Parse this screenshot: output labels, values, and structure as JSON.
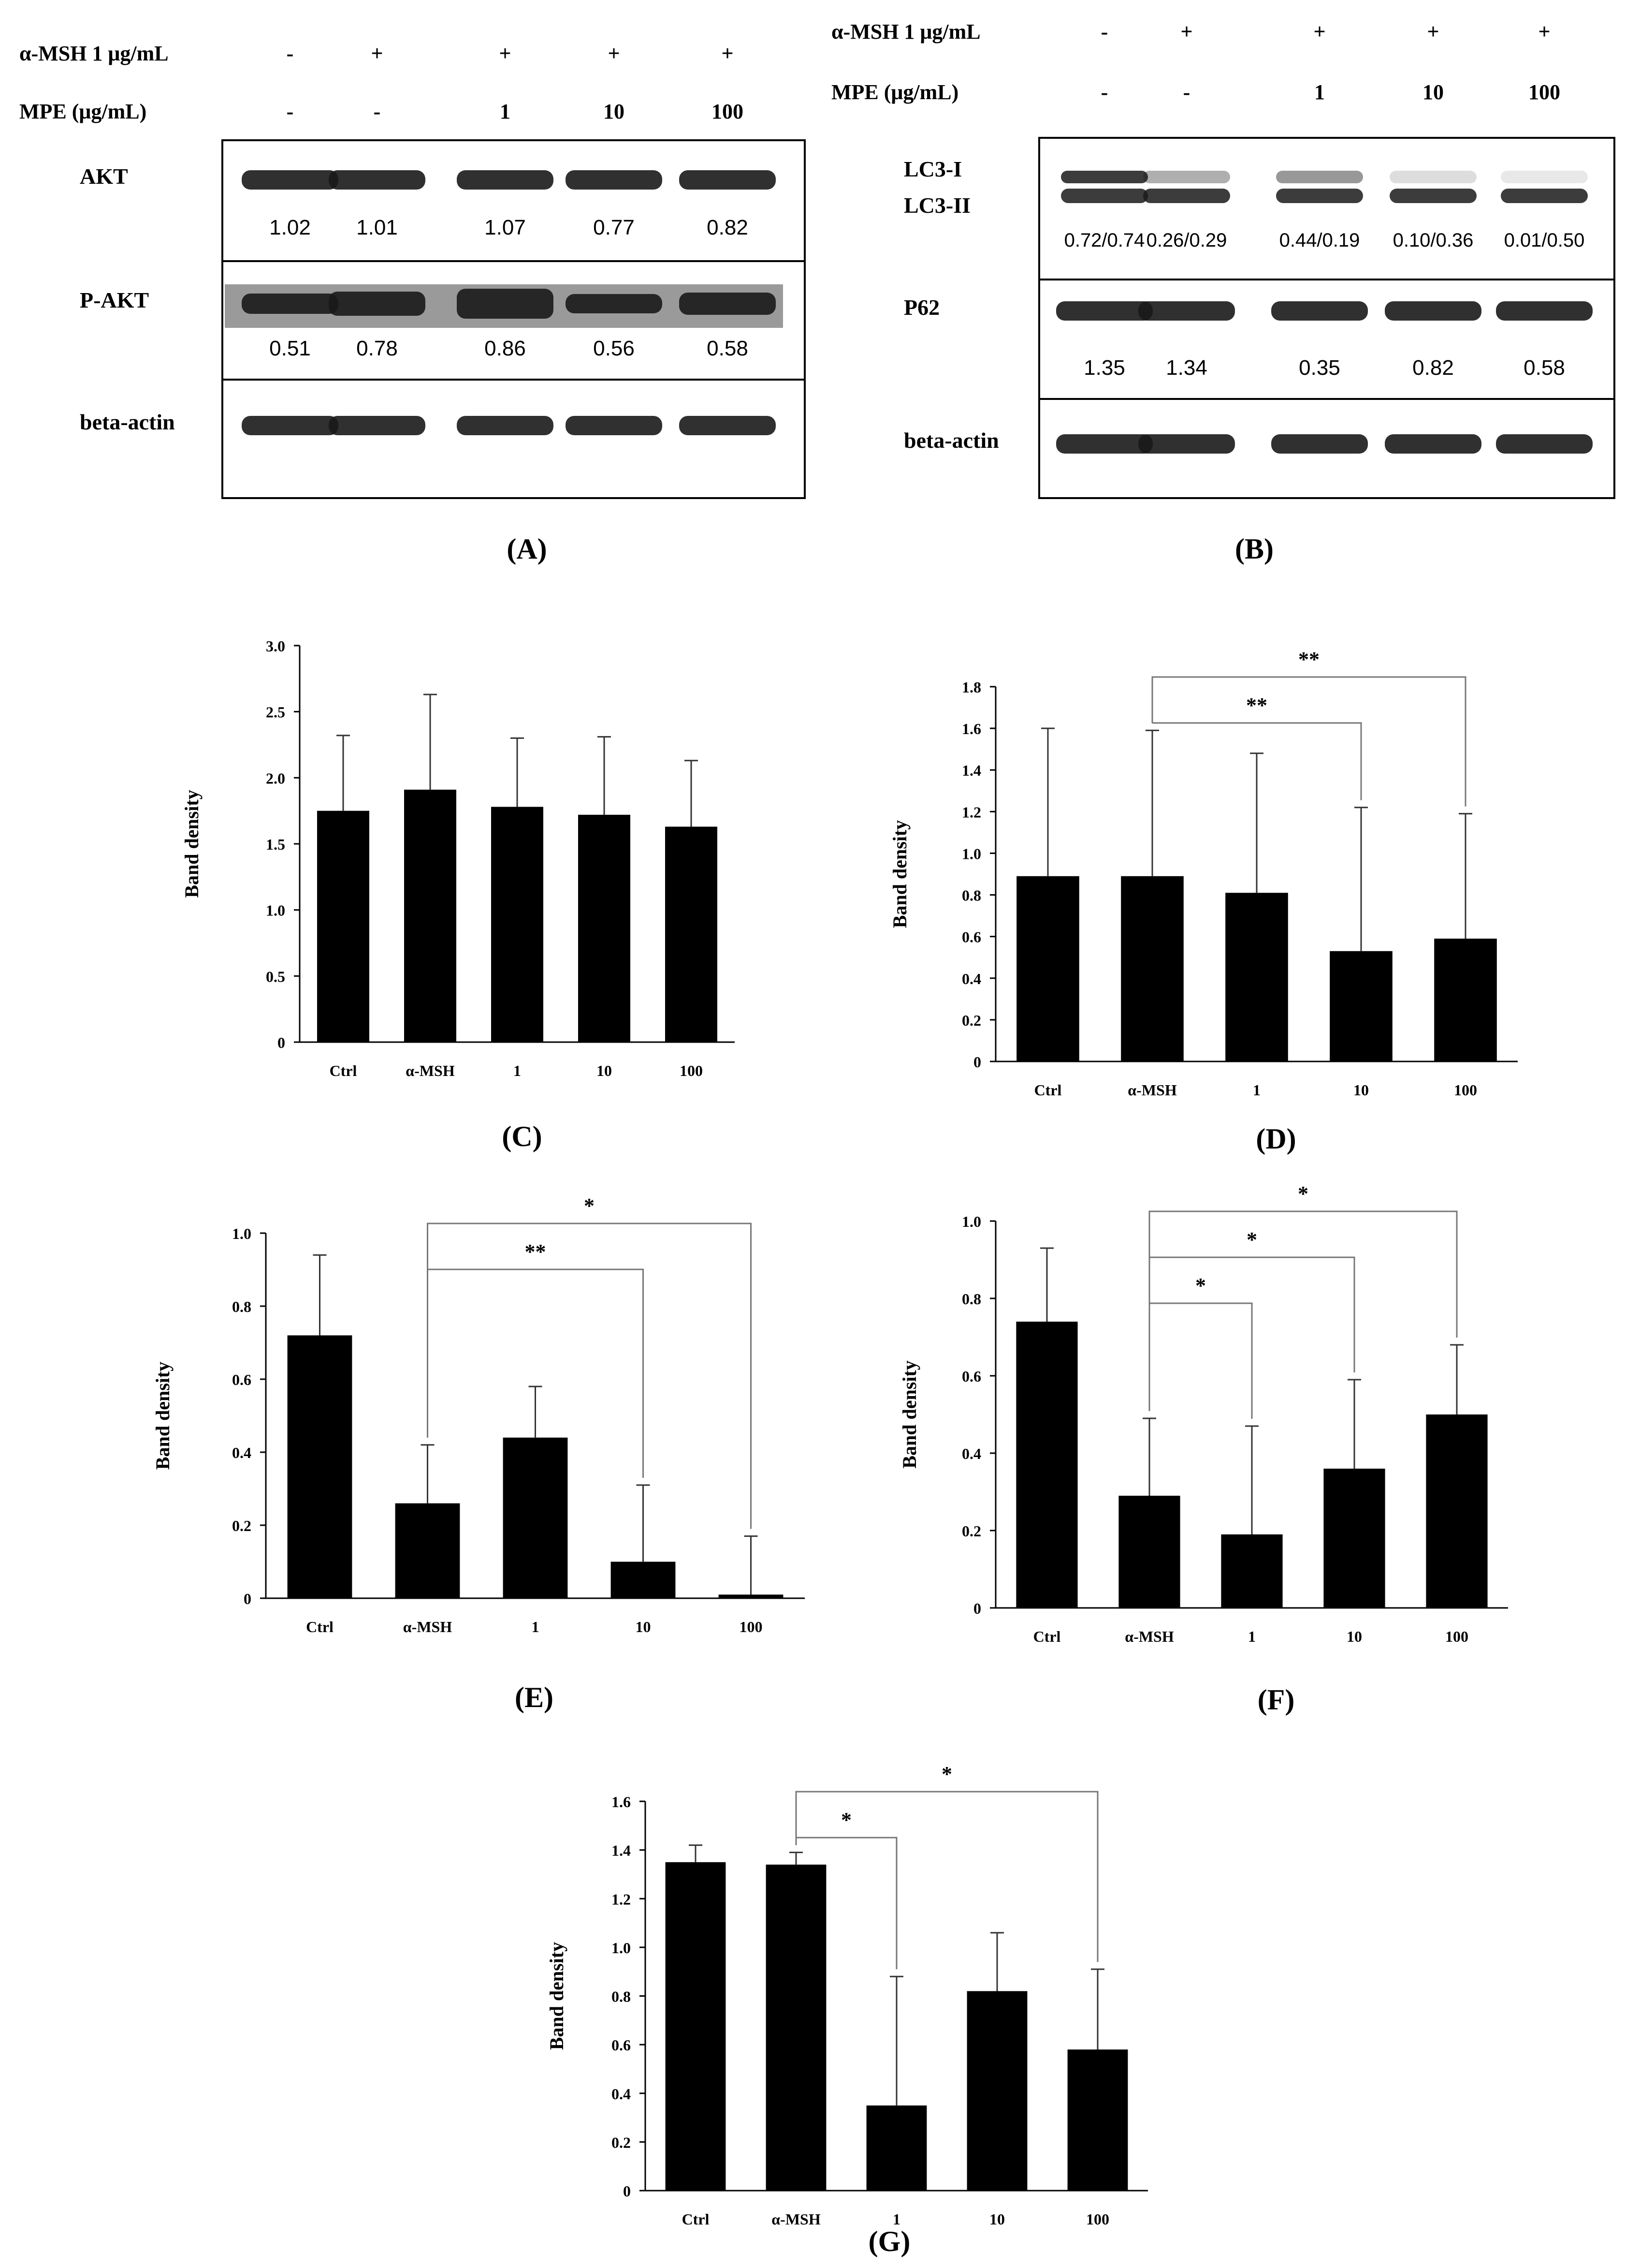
{
  "blot_a": {
    "treatment_rows": [
      {
        "label": "α-MSH 1 μg/mL",
        "values": [
          "-",
          "+",
          "+",
          "+",
          "+"
        ]
      },
      {
        "label": "MPE (μg/mL)",
        "values": [
          "-",
          "-",
          "1",
          "10",
          "100"
        ]
      }
    ],
    "bands": [
      {
        "label": "AKT",
        "values": [
          "1.02",
          "1.01",
          "1.07",
          "0.77",
          "0.82"
        ]
      },
      {
        "label": "P-AKT",
        "values": [
          "0.51",
          "0.78",
          "0.86",
          "0.56",
          "0.58"
        ]
      },
      {
        "label": "beta-actin",
        "values": []
      }
    ],
    "panel_label": "(A)"
  },
  "blot_b": {
    "treatment_rows": [
      {
        "label": "α-MSH 1 μg/mL",
        "values": [
          "-",
          "+",
          "+",
          "+",
          "+"
        ]
      },
      {
        "label": "MPE (μg/mL)",
        "values": [
          "-",
          "-",
          "1",
          "10",
          "100"
        ]
      }
    ],
    "bands": [
      {
        "label": "LC3-I",
        "label2": "LC3-II",
        "values": [
          "0.72/0.74",
          "0.26/0.29",
          "0.44/0.19",
          "0.10/0.36",
          "0.01/0.50"
        ]
      },
      {
        "label": "P62",
        "values": [
          "1.35",
          "1.34",
          "0.35",
          "0.82",
          "0.58"
        ]
      },
      {
        "label": "beta-actin",
        "values": []
      }
    ],
    "panel_label": "(B)"
  },
  "chart_data": [
    {
      "panel": "(C)",
      "type": "bar",
      "categories": [
        "Ctrl",
        "α-MSH",
        "1",
        "10",
        "100"
      ],
      "values": [
        1.75,
        1.91,
        1.78,
        1.72,
        1.63
      ],
      "errors": [
        0.57,
        0.72,
        0.52,
        0.59,
        0.5
      ],
      "ylabel": "Band density",
      "ylim": [
        0,
        3
      ],
      "yticks": [
        "0",
        "0.5",
        "1.0",
        "1.5",
        "2.0",
        "2.5",
        "3.0"
      ],
      "significance": []
    },
    {
      "panel": "(D)",
      "type": "bar",
      "categories": [
        "Ctrl",
        "α-MSH",
        "1",
        "10",
        "100"
      ],
      "values": [
        0.89,
        0.89,
        0.81,
        0.53,
        0.59
      ],
      "errors": [
        0.71,
        0.7,
        0.67,
        0.69,
        0.6
      ],
      "ylabel": "Band density",
      "ylim": [
        0,
        1.8
      ],
      "yticks": [
        "0",
        "0.2",
        "0.4",
        "0.6",
        "0.8",
        "1.0",
        "1.2",
        "1.4",
        "1.6",
        "1.8"
      ],
      "significance": [
        {
          "from": 1,
          "to": 3,
          "label": "**"
        },
        {
          "from": 1,
          "to": 4,
          "label": "**"
        }
      ]
    },
    {
      "panel": "(E)",
      "type": "bar",
      "categories": [
        "Ctrl",
        "α-MSH",
        "1",
        "10",
        "100"
      ],
      "values": [
        0.72,
        0.26,
        0.44,
        0.1,
        0.01
      ],
      "errors": [
        0.22,
        0.16,
        0.14,
        0.21,
        0.16
      ],
      "ylabel": "Band density",
      "ylim": [
        0,
        1.0
      ],
      "yticks": [
        "0",
        "0.2",
        "0.4",
        "0.6",
        "0.8",
        "1.0"
      ],
      "significance": [
        {
          "from": 1,
          "to": 3,
          "label": "**"
        },
        {
          "from": 1,
          "to": 4,
          "label": "*"
        }
      ]
    },
    {
      "panel": "(F)",
      "type": "bar",
      "categories": [
        "Ctrl",
        "α-MSH",
        "1",
        "10",
        "100"
      ],
      "values": [
        0.74,
        0.29,
        0.19,
        0.36,
        0.5
      ],
      "errors": [
        0.19,
        0.2,
        0.28,
        0.23,
        0.18
      ],
      "ylabel": "Band density",
      "ylim": [
        0,
        1.0
      ],
      "yticks": [
        "0",
        "0.2",
        "0.4",
        "0.6",
        "0.8",
        "1.0"
      ],
      "significance": [
        {
          "from": 1,
          "to": 2,
          "label": "*"
        },
        {
          "from": 1,
          "to": 3,
          "label": "*"
        },
        {
          "from": 1,
          "to": 4,
          "label": "*"
        }
      ]
    },
    {
      "panel": "(G)",
      "type": "bar",
      "categories": [
        "Ctrl",
        "α-MSH",
        "1",
        "10",
        "100"
      ],
      "values": [
        1.35,
        1.34,
        0.35,
        0.82,
        0.58
      ],
      "errors": [
        0.07,
        0.05,
        0.53,
        0.24,
        0.33
      ],
      "ylabel": "Band density",
      "ylim": [
        0,
        1.6
      ],
      "yticks": [
        "0",
        "0.2",
        "0.4",
        "0.6",
        "0.8",
        "1.0",
        "1.2",
        "1.4",
        "1.6"
      ],
      "significance": [
        {
          "from": 1,
          "to": 2,
          "label": "*"
        },
        {
          "from": 1,
          "to": 4,
          "label": "*"
        }
      ]
    }
  ],
  "colors": {
    "bar": "#000000",
    "axis": "#000000",
    "bracket": "#777777",
    "blot_bg": "#e8e8e8",
    "band": "#1a1a1a"
  }
}
